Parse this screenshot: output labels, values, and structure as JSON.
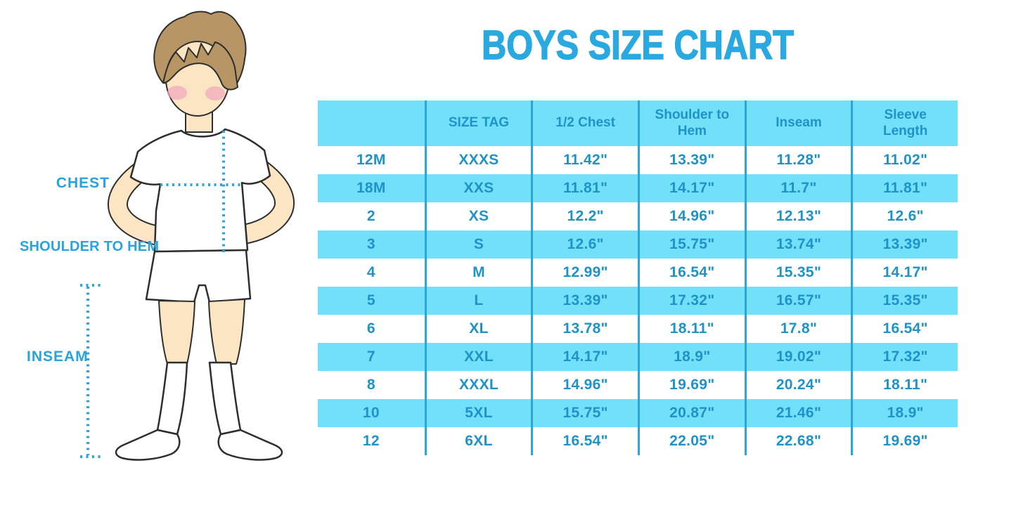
{
  "title": "BOYS SIZE CHART",
  "figure_labels": {
    "chest": "CHEST",
    "shoulder_to_hem": "SHOULDER TO HEM",
    "inseam": "INSEAM"
  },
  "colors": {
    "title_blue": "#29a9e0",
    "cyan": "#73e0fa",
    "divider": "#2aa7da",
    "text_blue": "#1e93c8",
    "label_blue": "#29a3dc",
    "dotted": "#2aa7e2",
    "hair": "#b79565",
    "skin": "#fbe5c3",
    "blush": "#f0a9be",
    "outline": "#2e2e2e"
  },
  "chart_data": {
    "type": "table",
    "title": "BOYS SIZE CHART",
    "columns": [
      "",
      "SIZE TAG",
      "1/2 Chest",
      "Shoulder to Hem",
      "Inseam",
      "Sleeve Length"
    ],
    "rows": [
      [
        "12M",
        "XXXS",
        "11.42\"",
        "13.39\"",
        "11.28\"",
        "11.02\""
      ],
      [
        "18M",
        "XXS",
        "11.81\"",
        "14.17\"",
        "11.7\"",
        "11.81\""
      ],
      [
        "2",
        "XS",
        "12.2\"",
        "14.96\"",
        "12.13\"",
        "12.6\""
      ],
      [
        "3",
        "S",
        "12.6\"",
        "15.75\"",
        "13.74\"",
        "13.39\""
      ],
      [
        "4",
        "M",
        "12.99\"",
        "16.54\"",
        "15.35\"",
        "14.17\""
      ],
      [
        "5",
        "L",
        "13.39\"",
        "17.32\"",
        "16.57\"",
        "15.35\""
      ],
      [
        "6",
        "XL",
        "13.78\"",
        "18.11\"",
        "17.8\"",
        "16.54\""
      ],
      [
        "7",
        "XXL",
        "14.17\"",
        "18.9\"",
        "19.02\"",
        "17.32\""
      ],
      [
        "8",
        "XXXL",
        "14.96\"",
        "19.69\"",
        "20.24\"",
        "18.11\""
      ],
      [
        "10",
        "5XL",
        "15.75\"",
        "20.87\"",
        "21.46\"",
        "18.9\""
      ],
      [
        "12",
        "6XL",
        "16.54\"",
        "22.05\"",
        "22.68\"",
        "19.69\""
      ]
    ],
    "layout": {
      "header_fill": "alternating rows cyan/white, header cyan",
      "column_dividers": "vertical blue lines between all 6 columns",
      "grid": "no horizontal lines"
    }
  }
}
